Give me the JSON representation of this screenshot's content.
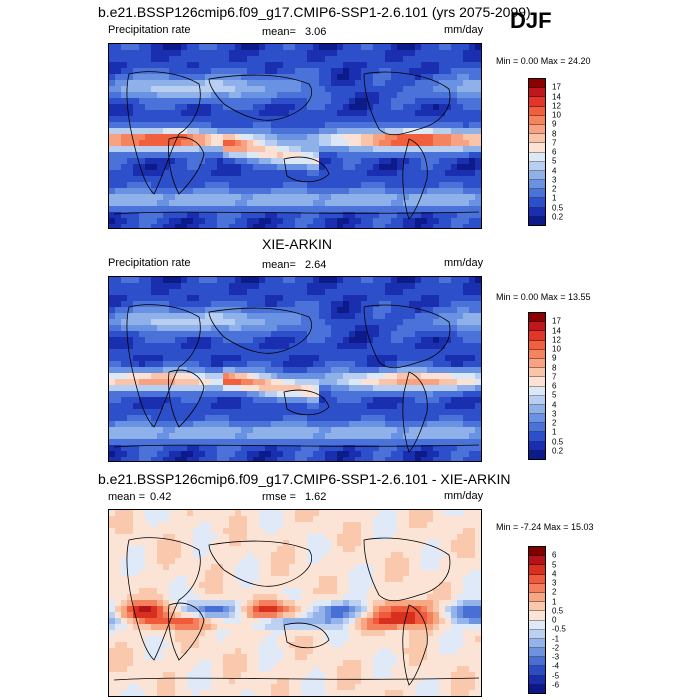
{
  "season": "DJF",
  "panels": [
    {
      "id": "model",
      "title": "b.e21.BSSP126cmip6.f09_g17.CMIP6-SSP1-2.6.101 (yrs 2075-2099)",
      "left_label": "Precipitation rate",
      "stat1_label": "mean=",
      "stat1_value": "3.06",
      "stat2_label": "",
      "stat2_value": "",
      "units": "mm/day",
      "minmax": "Min =   0.00 Max =  24.20"
    },
    {
      "id": "obs",
      "title": "XIE-ARKIN",
      "left_label": "Precipitation rate",
      "stat1_label": "mean=",
      "stat1_value": "2.64",
      "stat2_label": "",
      "stat2_value": "",
      "units": "mm/day",
      "minmax": "Min =   0.00 Max =  13.55"
    },
    {
      "id": "diff",
      "title": "b.e21.BSSP126cmip6.f09_g17.CMIP6-SSP1-2.6.101 - XIE-ARKIN",
      "left_label": "mean =",
      "left_value": "0.42",
      "stat1_label": "rmse =",
      "stat1_value": "1.62",
      "units": "mm/day",
      "minmax": "Min =  -7.24 Max =  15.03"
    }
  ],
  "colorbar_precip": {
    "labels": [
      "17",
      "14",
      "12",
      "10",
      "9",
      "8",
      "7",
      "6",
      "5",
      "4",
      "3",
      "2",
      "1",
      "0.5",
      "0.2"
    ],
    "colors": [
      "#8b0000",
      "#c0171c",
      "#e0372a",
      "#f0603c",
      "#f4845e",
      "#f7a383",
      "#f9c4aa",
      "#fbe2d4",
      "#dde8f7",
      "#b9cff2",
      "#8fb1ea",
      "#6a92e3",
      "#4a72d8",
      "#2e4fca",
      "#1a2fb0",
      "#0d1a8a"
    ]
  },
  "colorbar_diff": {
    "labels": [
      "6",
      "5",
      "4",
      "3",
      "2",
      "1",
      "0.5",
      "0",
      "-0.5",
      "-1",
      "-2",
      "-3",
      "-4",
      "-5",
      "-6"
    ],
    "colors": [
      "#800000",
      "#b3141b",
      "#d7301f",
      "#ef5a3c",
      "#f47f5c",
      "#f8a783",
      "#fac8ad",
      "#fbe4d6",
      "#dfe9f7",
      "#bcd1f2",
      "#93b3ea",
      "#6d92e0",
      "#4a6fd4",
      "#2c4cc2",
      "#1a2da6",
      "#0c178a"
    ]
  },
  "chart_data": {
    "type": "heatmap",
    "title": "DJF",
    "maps": [
      {
        "name": "b.e21.BSSP126cmip6.f09_g17.CMIP6-SSP1-2.6.101 (yrs 2075-2099)",
        "variable": "Precipitation rate",
        "units": "mm/day",
        "mean": 3.06,
        "min": 0.0,
        "max": 24.2
      },
      {
        "name": "XIE-ARKIN",
        "variable": "Precipitation rate",
        "units": "mm/day",
        "mean": 2.64,
        "min": 0.0,
        "max": 13.55
      },
      {
        "name": "b.e21.BSSP126cmip6.f09_g17.CMIP6-SSP1-2.6.101 - XIE-ARKIN",
        "units": "mm/day",
        "mean": 0.42,
        "rmse": 1.62,
        "min": -7.24,
        "max": 15.03
      }
    ],
    "colorbar_levels_precip": [
      0.2,
      0.5,
      1,
      2,
      3,
      4,
      5,
      6,
      7,
      8,
      9,
      10,
      12,
      14,
      17
    ],
    "colorbar_levels_diff": [
      -6,
      -5,
      -4,
      -3,
      -2,
      -1,
      -0.5,
      0,
      0.5,
      1,
      2,
      3,
      4,
      5,
      6
    ]
  }
}
